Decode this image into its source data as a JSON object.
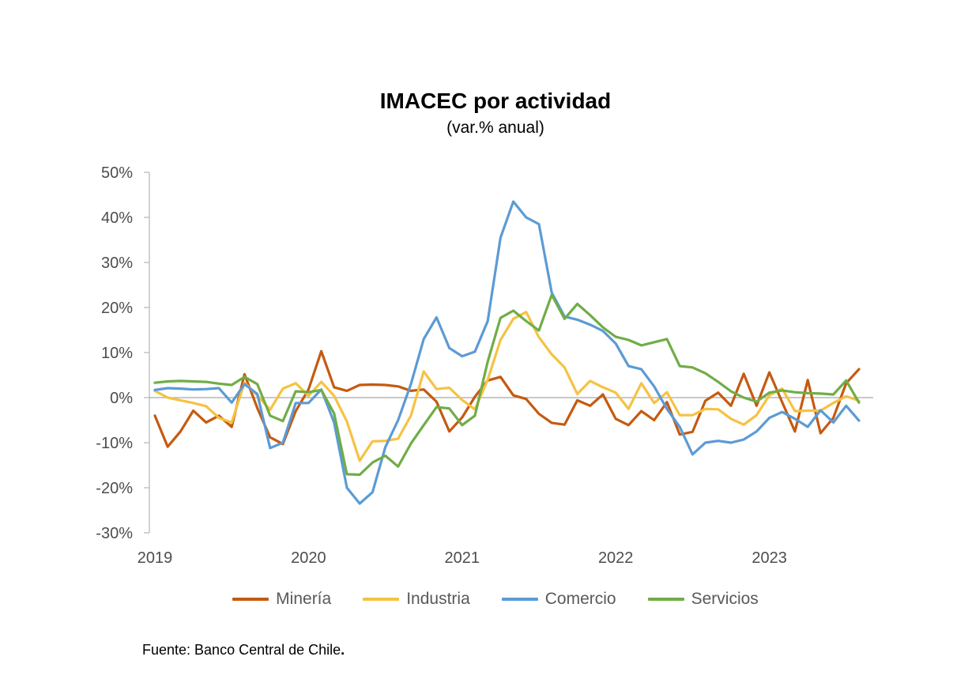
{
  "title": "IMACEC por actividad",
  "subtitle": "(var.% anual)",
  "source": {
    "text": "Fuente: Banco Central de Chile",
    "period": "."
  },
  "chart_data": {
    "type": "line",
    "x_unit": "month",
    "x_start": "2019-01",
    "x_end": "2023-08",
    "x_tick_labels": [
      "2019",
      "2020",
      "2021",
      "2022",
      "2023"
    ],
    "y_tick_labels": [
      "50%",
      "40%",
      "30%",
      "20%",
      "10%",
      "0%",
      "-10%",
      "-20%",
      "-30%"
    ],
    "ylim": [
      -30,
      50
    ],
    "y_tick_step": 10,
    "grid": "zero-line-only",
    "legend_position": "bottom",
    "axis_color": "#bfbfbf",
    "zero_line_color": "#a6a6a6",
    "label_color": "#4d4d4d",
    "series": [
      {
        "name": "Minería",
        "color": "#C55A11",
        "values": [
          -4.0,
          -10.9,
          -7.5,
          -2.9,
          -5.5,
          -4.0,
          -6.5,
          5.2,
          -2.3,
          -8.8,
          -10.3,
          -3.0,
          1.8,
          10.3,
          2.3,
          1.5,
          2.8,
          2.9,
          2.8,
          2.5,
          1.5,
          1.8,
          -0.9,
          -7.5,
          -4.4,
          0.2,
          3.8,
          4.6,
          0.5,
          -0.3,
          -3.6,
          -5.6,
          -6.0,
          -0.6,
          -1.8,
          0.7,
          -4.7,
          -6.1,
          -3.0,
          -5.0,
          -1.0,
          -8.2,
          -7.6,
          -0.7,
          1.1,
          -1.8,
          5.3,
          -1.8,
          5.6,
          -1.0,
          -7.5,
          3.9,
          -7.9,
          -4.5,
          3.2,
          6.3
        ]
      },
      {
        "name": "Industria",
        "color": "#F5C243",
        "values": [
          1.5,
          0.0,
          -0.6,
          -1.2,
          -1.9,
          -4.5,
          -5.5,
          3.3,
          0.5,
          -2.7,
          2.0,
          3.2,
          0.4,
          3.5,
          0.4,
          -5.3,
          -14.0,
          -9.7,
          -9.6,
          -9.1,
          -4.0,
          5.8,
          1.9,
          2.2,
          -0.5,
          -2.6,
          4.0,
          12.8,
          17.5,
          19.0,
          13.4,
          9.6,
          6.7,
          0.8,
          3.7,
          2.3,
          1.1,
          -2.5,
          3.2,
          -1.2,
          1.2,
          -3.9,
          -3.9,
          -2.5,
          -2.6,
          -4.7,
          -6.0,
          -3.9,
          0.5,
          2.0,
          -3.0,
          -2.9,
          -2.9,
          -1.2,
          0.3,
          -0.7
        ]
      },
      {
        "name": "Comercio",
        "color": "#5B9BD5",
        "values": [
          1.7,
          2.1,
          2.0,
          1.8,
          1.9,
          2.1,
          -1.1,
          3.0,
          0.8,
          -11.2,
          -10.0,
          -1.2,
          -1.2,
          1.8,
          -5.5,
          -20.0,
          -23.5,
          -21.0,
          -11.0,
          -5.0,
          3.0,
          13.0,
          17.8,
          11.0,
          9.2,
          10.2,
          17.0,
          35.5,
          43.5,
          40.0,
          38.5,
          23.3,
          18.0,
          17.3,
          16.2,
          14.8,
          12.0,
          7.0,
          6.3,
          2.5,
          -2.5,
          -6.5,
          -12.6,
          -10.0,
          -9.6,
          -10.0,
          -9.3,
          -7.5,
          -4.5,
          -3.2,
          -4.7,
          -6.5,
          -2.8,
          -5.5,
          -1.8,
          -5.1
        ]
      },
      {
        "name": "Servicios",
        "color": "#70AD47",
        "values": [
          3.3,
          3.6,
          3.7,
          3.6,
          3.5,
          3.1,
          2.8,
          4.6,
          3.0,
          -4.0,
          -5.2,
          1.4,
          1.2,
          1.7,
          -3.5,
          -17.0,
          -17.1,
          -14.4,
          -12.9,
          -15.3,
          -10.2,
          -6.1,
          -2.1,
          -2.4,
          -6.1,
          -4.0,
          8.0,
          17.7,
          19.3,
          17.0,
          14.9,
          22.8,
          17.5,
          20.8,
          18.3,
          15.6,
          13.5,
          12.8,
          11.6,
          12.3,
          13.0,
          7.0,
          6.7,
          5.4,
          3.5,
          1.4,
          0.0,
          -0.9,
          1.1,
          1.6,
          1.2,
          1.0,
          0.9,
          0.7,
          3.8,
          -1.1
        ]
      }
    ]
  }
}
